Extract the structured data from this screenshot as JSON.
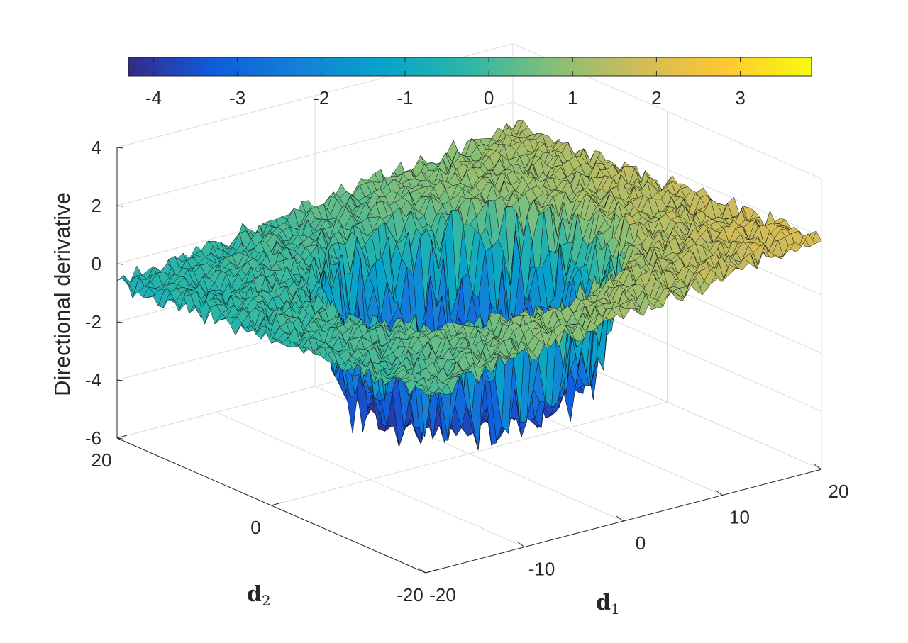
{
  "chart_data": {
    "type": "surface",
    "title": "",
    "xlabel": "d",
    "xlabel_subscript": "1",
    "ylabel": "d",
    "ylabel_subscript": "2",
    "zlabel": "Directional derivative",
    "xlim": [
      -20,
      20
    ],
    "ylim": [
      -20,
      20
    ],
    "zlim": [
      -6,
      4
    ],
    "x_ticks": [
      -20,
      -10,
      0,
      10,
      20
    ],
    "x_tick_labels": [
      "-20",
      "-10",
      "0",
      "10",
      "20"
    ],
    "y_ticks": [
      -20,
      0,
      20
    ],
    "y_tick_labels": [
      "-20",
      "0",
      "20"
    ],
    "z_ticks": [
      -6,
      -4,
      -2,
      0,
      2,
      4
    ],
    "z_tick_labels": [
      "-6",
      "-4",
      "-2",
      "0",
      "2",
      "4"
    ],
    "grid": true,
    "colormap": "parula",
    "colorbar": {
      "location": "top",
      "range": [
        -4.3,
        3.85
      ],
      "ticks": [
        -4,
        -3,
        -2,
        -1,
        0,
        1,
        2,
        3
      ],
      "tick_labels": [
        "-4",
        "-3",
        "-2",
        "-1",
        "0",
        "1",
        "2",
        "3"
      ],
      "stops": [
        "#352a87",
        "#0f5cdd",
        "#1481d6",
        "#06a4ca",
        "#2eb7a4",
        "#87bf77",
        "#d1bb59",
        "#fec832",
        "#f9fb0e"
      ]
    },
    "surface": {
      "description_values": "noisy plateau near z=0 for |r|>~12, sloping to z~1 along the +d1 rim, deep noisy well to z~-4 inside r<~9 with spiky walls reaching -5.5",
      "outer_level": 0,
      "inner_level": -3.8,
      "wall_radius": 10.5,
      "noise_amplitude": 0.35
    }
  }
}
